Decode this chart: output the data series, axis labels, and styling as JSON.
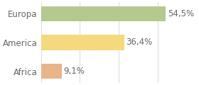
{
  "categories": [
    "Europa",
    "America",
    "Africa"
  ],
  "values": [
    54.5,
    36.4,
    9.1
  ],
  "labels": [
    "54,5%",
    "36,4%",
    "9,1%"
  ],
  "bar_colors": [
    "#b5c98e",
    "#f5d97e",
    "#e8b48a"
  ],
  "background_color": "#ffffff",
  "plot_bg_color": "#ffffff",
  "xlim": [
    0,
    68
  ],
  "bar_height": 0.52,
  "label_fontsize": 8.5,
  "tick_fontsize": 8.5,
  "grid_color": "#dddddd",
  "text_color": "#666666",
  "grid_x": [
    0,
    17,
    34,
    51,
    68
  ]
}
